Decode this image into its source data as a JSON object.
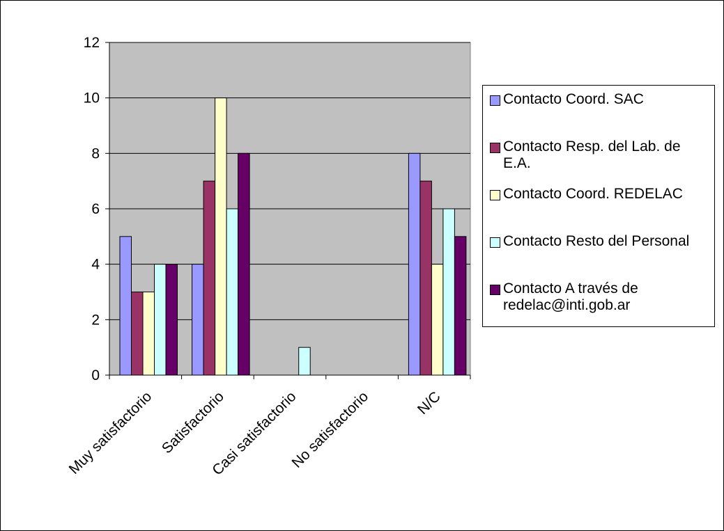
{
  "chart_data": {
    "type": "bar",
    "categories": [
      "Muy satisfactorio",
      "Satisfactorio",
      "Casi satisfactorio",
      "No satisfactorio",
      "N/C"
    ],
    "series": [
      {
        "name": "Contacto Coord. SAC",
        "color": "#9999ff",
        "values": [
          5,
          4,
          0,
          0,
          8
        ]
      },
      {
        "name": "Contacto Resp. del Lab. de E.A.",
        "color": "#993366",
        "values": [
          3,
          7,
          0,
          0,
          7
        ]
      },
      {
        "name": "Contacto Coord. REDELAC",
        "color": "#ffffcc",
        "values": [
          3,
          10,
          0,
          0,
          4
        ]
      },
      {
        "name": "Contacto Resto del Personal",
        "color": "#ccffff",
        "values": [
          4,
          6,
          1,
          0,
          6
        ]
      },
      {
        "name": "Contacto A través de redelac@inti.gob.ar",
        "color": "#660066",
        "values": [
          4,
          8,
          0,
          0,
          5
        ]
      }
    ],
    "ylim": [
      0,
      12
    ],
    "yticks": [
      "0",
      "2",
      "4",
      "6",
      "8",
      "10",
      "12"
    ],
    "grid": true,
    "plot_background": "#c0c0c0",
    "legend_position": "right"
  }
}
